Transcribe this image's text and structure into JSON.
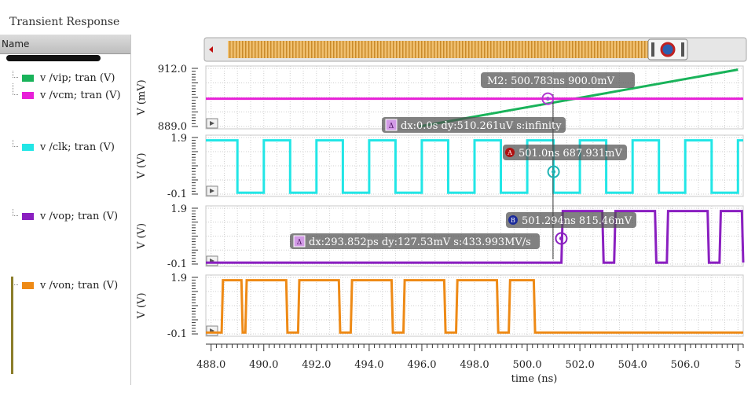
{
  "window": {
    "title": "Transient Response"
  },
  "sidebar": {
    "header": "Name",
    "signals": [
      {
        "label": "v /vip; tran (V)",
        "color": "#19b35a"
      },
      {
        "label": "v /vcm; tran (V)",
        "color": "#e81fd8"
      },
      {
        "label": "v /clk; tran (V)",
        "color": "#22e6e6"
      },
      {
        "label": "v /vop; tran (V)",
        "color": "#8a1fc0"
      },
      {
        "label": "v /von; tran (V)",
        "color": "#ee8a16"
      }
    ]
  },
  "chart_data": {
    "type": "line",
    "xlabel": "time (ns)",
    "xlim": [
      487.8,
      508.2
    ],
    "xticks": [
      "488.0",
      "490.0",
      "492.0",
      "494.0",
      "496.0",
      "498.0",
      "500.0",
      "502.0",
      "504.0",
      "506.0",
      "5"
    ],
    "strips": [
      {
        "ylabel": "V (mV)",
        "ylim": [
          889.0,
          912.0
        ],
        "yticks": [
          "912.0",
          "889.0"
        ],
        "series": [
          {
            "name": "v /vip; tran (V)",
            "color": "#19b35a",
            "points": [
              [
                495.9,
                889.0
              ],
              [
                508.0,
                911.5
              ]
            ]
          },
          {
            "name": "v /vcm; tran (V)",
            "color": "#e81fd8",
            "points": [
              [
                487.8,
                900.0
              ],
              [
                508.2,
                900.0
              ]
            ]
          }
        ]
      },
      {
        "ylabel": "V (V)",
        "ylim": [
          -0.1,
          1.9
        ],
        "yticks": [
          "1.9",
          "-0.1"
        ],
        "series": [
          {
            "name": "v /clk; tran (V)",
            "color": "#22e6e6",
            "clock": {
              "start_high": 488.0,
              "period": 2.0,
              "high": 1.0,
              "end": 508.2
            }
          }
        ]
      },
      {
        "ylabel": "V (V)",
        "ylim": [
          -0.1,
          1.9
        ],
        "yticks": [
          "1.9",
          "-0.1"
        ],
        "series": [
          {
            "name": "v /vop; tran (V)",
            "color": "#8a1fc0",
            "pulses": [
              [
                501.3,
                502.9
              ],
              [
                503.3,
                504.9
              ],
              [
                505.3,
                506.9
              ],
              [
                507.3,
                508.2
              ]
            ],
            "high": 1.8,
            "low": -0.05
          }
        ]
      },
      {
        "ylabel": "V (V)",
        "ylim": [
          -0.1,
          1.9
        ],
        "yticks": [
          "1.9",
          "-0.1"
        ],
        "series": [
          {
            "name": "v /von; tran (V)",
            "color": "#ee8a16",
            "pulses": [
              [
                488.4,
                489.2
              ],
              [
                489.3,
                490.9
              ],
              [
                491.3,
                492.9
              ],
              [
                493.3,
                494.9
              ],
              [
                495.3,
                496.9
              ],
              [
                497.3,
                498.9
              ],
              [
                499.3,
                500.3
              ]
            ],
            "high": 1.8,
            "low": -0.05
          }
        ]
      }
    ],
    "markers": [
      {
        "text": "M2: 500.783ns 900.0mV",
        "x": 500.783,
        "y": 900.0,
        "strip": 0
      },
      {
        "text": "dx:0.0s dy:510.261uV s:infinity",
        "x": 500.783,
        "y": 889.5,
        "strip": 0,
        "delta": true
      },
      {
        "text": "501.0ns 687.931mV",
        "x": 501.0,
        "y": 0.688,
        "strip": 1,
        "badge": "A"
      },
      {
        "text": "501.294ns 815.46mV",
        "x": 501.294,
        "y": 0.815,
        "strip": 2,
        "badge": "B"
      },
      {
        "text": "dx:293.852ps dy:127.53mV s:433.993MV/s",
        "x": 501.2,
        "y": 0.3,
        "strip": 2,
        "delta": true
      }
    ]
  }
}
